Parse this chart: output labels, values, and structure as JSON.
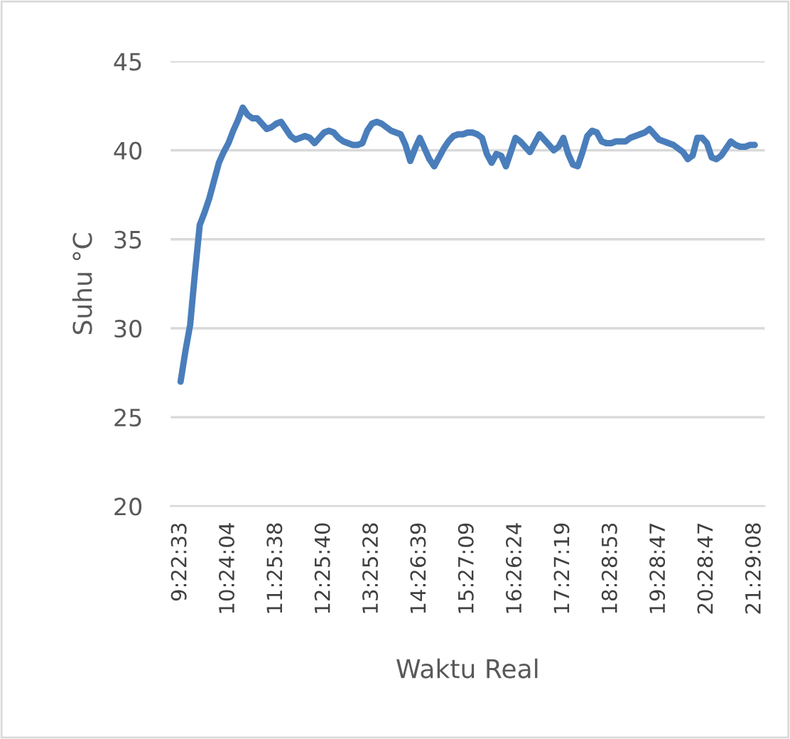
{
  "chart_data": {
    "type": "line",
    "xlabel": "Waktu Real",
    "ylabel": "Suhu °C",
    "categories": [
      "9:22:33",
      null,
      null,
      null,
      null,
      null,
      null,
      null,
      null,
      null,
      "10:24:04",
      null,
      null,
      null,
      null,
      null,
      null,
      null,
      null,
      null,
      "11:25:38",
      null,
      null,
      null,
      null,
      null,
      null,
      null,
      null,
      null,
      "12:25:40",
      null,
      null,
      null,
      null,
      null,
      null,
      null,
      null,
      null,
      "13:25:28",
      null,
      null,
      null,
      null,
      null,
      null,
      null,
      null,
      null,
      "14:26:39",
      null,
      null,
      null,
      null,
      null,
      null,
      null,
      null,
      null,
      "15:27:09",
      null,
      null,
      null,
      null,
      null,
      null,
      null,
      null,
      null,
      "16:26:24",
      null,
      null,
      null,
      null,
      null,
      null,
      null,
      null,
      null,
      "17:27:19",
      null,
      null,
      null,
      null,
      null,
      null,
      null,
      null,
      null,
      "18:28:53",
      null,
      null,
      null,
      null,
      null,
      null,
      null,
      null,
      null,
      "19:28:47",
      null,
      null,
      null,
      null,
      null,
      null,
      null,
      null,
      null,
      "20:28:47",
      null,
      null,
      null,
      null,
      null,
      null,
      null,
      null,
      null,
      "21:29:08"
    ],
    "series": [
      {
        "color": "#4a7ebb",
        "values": [
          27.0,
          28.7,
          30.2,
          33.1,
          35.8,
          36.5,
          37.3,
          38.3,
          39.3,
          39.9,
          40.4,
          41.1,
          41.7,
          42.4,
          42.0,
          41.8,
          41.8,
          41.5,
          41.2,
          41.3,
          41.5,
          41.6,
          41.2,
          40.8,
          40.6,
          40.7,
          40.8,
          40.7,
          40.4,
          40.7,
          41.0,
          41.1,
          41.0,
          40.7,
          40.5,
          40.4,
          40.3,
          40.3,
          40.4,
          41.1,
          41.5,
          41.6,
          41.5,
          41.3,
          41.1,
          41.0,
          40.9,
          40.3,
          39.4,
          40.1,
          40.7,
          40.1,
          39.5,
          39.1,
          39.6,
          40.1,
          40.5,
          40.8,
          40.9,
          40.9,
          41.0,
          41.0,
          40.9,
          40.7,
          39.8,
          39.3,
          39.8,
          39.7,
          39.1,
          39.9,
          40.7,
          40.5,
          40.2,
          39.9,
          40.4,
          40.9,
          40.6,
          40.3,
          40.0,
          40.2,
          40.7,
          39.8,
          39.2,
          39.1,
          39.9,
          40.8,
          41.1,
          41.0,
          40.5,
          40.4,
          40.4,
          40.5,
          40.5,
          40.5,
          40.7,
          40.8,
          40.9,
          41.0,
          41.2,
          40.9,
          40.6,
          40.5,
          40.4,
          40.3,
          40.1,
          39.9,
          39.5,
          39.7,
          40.7,
          40.7,
          40.4,
          39.6,
          39.5,
          39.7,
          40.1,
          40.5,
          40.3,
          40.2,
          40.2,
          40.3,
          40.3
        ]
      }
    ],
    "ylim": [
      20,
      45
    ],
    "yticks": [
      20,
      25,
      30,
      35,
      40,
      45
    ],
    "grid": "y",
    "legend": false,
    "line_style": "solid",
    "marker": "none"
  }
}
